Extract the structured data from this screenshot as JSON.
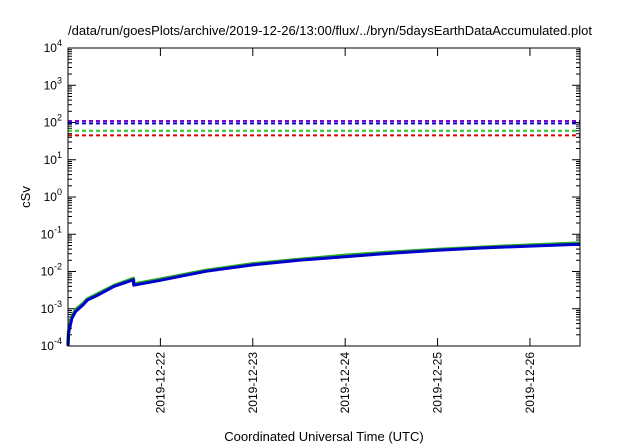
{
  "chart_data": {
    "type": "line",
    "title": "/data/run/goesPlots/archive/2019-12-26/13:00/flux/../bryn/5daysEarthDataAccumulated.plot",
    "xlabel": "Coordinated Universal Time (UTC)",
    "ylabel": "cSv",
    "yscale": "log",
    "ylim": [
      0.0001,
      10000
    ],
    "y_ticks": [
      {
        "base": "10",
        "exp": "-4",
        "value": 0.0001
      },
      {
        "base": "10",
        "exp": "-3",
        "value": 0.001
      },
      {
        "base": "10",
        "exp": "-2",
        "value": 0.01
      },
      {
        "base": "10",
        "exp": "-1",
        "value": 0.1
      },
      {
        "base": "10",
        "exp": "0",
        "value": 1
      },
      {
        "base": "10",
        "exp": "1",
        "value": 10
      },
      {
        "base": "10",
        "exp": "2",
        "value": 100
      },
      {
        "base": "10",
        "exp": "3",
        "value": 1000
      },
      {
        "base": "10",
        "exp": "4",
        "value": 10000
      }
    ],
    "xlim": [
      "2019-12-21T00:00",
      "2019-12-26T13:00"
    ],
    "x_ticks": [
      "2019-12-22",
      "2019-12-23",
      "2019-12-24",
      "2019-12-25",
      "2019-12-26"
    ],
    "grid": false,
    "reference_lines": [
      {
        "color": "#8800cc",
        "style": "dashed",
        "value": 110
      },
      {
        "color": "#0000cc",
        "style": "dashed",
        "value": 95
      },
      {
        "color": "#22cc22",
        "style": "dashed",
        "value": 60
      },
      {
        "color": "#dd0000",
        "style": "dashed",
        "value": 45
      }
    ],
    "series": [
      {
        "color": "#22aa22",
        "x": [
          "2019-12-21T00:00",
          "2019-12-21T00:10",
          "2019-12-21T01:00",
          "2019-12-21T02:00",
          "2019-12-21T04:00",
          "2019-12-21T05:00",
          "2019-12-21T08:00",
          "2019-12-21T12:00",
          "2019-12-21T17:00",
          "2019-12-21T17:05",
          "2019-12-22T00:00",
          "2019-12-22T06:00",
          "2019-12-22T12:00",
          "2019-12-23T00:00",
          "2019-12-23T12:00",
          "2019-12-24T00:00",
          "2019-12-24T12:00",
          "2019-12-25T00:00",
          "2019-12-25T12:00",
          "2019-12-26T00:00",
          "2019-12-26T13:00"
        ],
        "values": [
          0.00011,
          0.00025,
          0.0006,
          0.00095,
          0.0014,
          0.0018,
          0.0026,
          0.0042,
          0.0065,
          0.0046,
          0.0062,
          0.0082,
          0.0108,
          0.016,
          0.021,
          0.027,
          0.033,
          0.039,
          0.045,
          0.051,
          0.058
        ]
      },
      {
        "color": "#0000cc",
        "x": [
          "2019-12-21T00:00",
          "2019-12-21T00:10",
          "2019-12-21T01:00",
          "2019-12-21T02:00",
          "2019-12-21T04:00",
          "2019-12-21T05:00",
          "2019-12-21T08:00",
          "2019-12-21T12:00",
          "2019-12-21T17:00",
          "2019-12-21T17:05",
          "2019-12-22T00:00",
          "2019-12-22T06:00",
          "2019-12-22T12:00",
          "2019-12-23T00:00",
          "2019-12-23T12:00",
          "2019-12-24T00:00",
          "2019-12-24T12:00",
          "2019-12-25T00:00",
          "2019-12-25T12:00",
          "2019-12-26T00:00",
          "2019-12-26T13:00"
        ],
        "values": [
          0.0001,
          0.00022,
          0.00055,
          0.00085,
          0.0013,
          0.0017,
          0.0024,
          0.004,
          0.006,
          0.0043,
          0.0058,
          0.0077,
          0.0102,
          0.015,
          0.02,
          0.025,
          0.031,
          0.037,
          0.043,
          0.048,
          0.054
        ]
      }
    ]
  }
}
